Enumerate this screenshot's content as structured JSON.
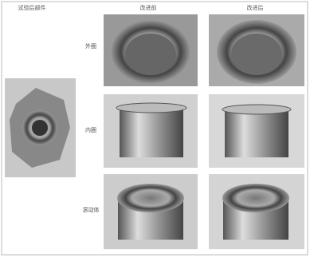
{
  "figure": {
    "corner_label": "试验后部件",
    "columns": [
      "改进前",
      "改进后"
    ],
    "rows": [
      "外圈",
      "内圈",
      "滚动体"
    ]
  }
}
